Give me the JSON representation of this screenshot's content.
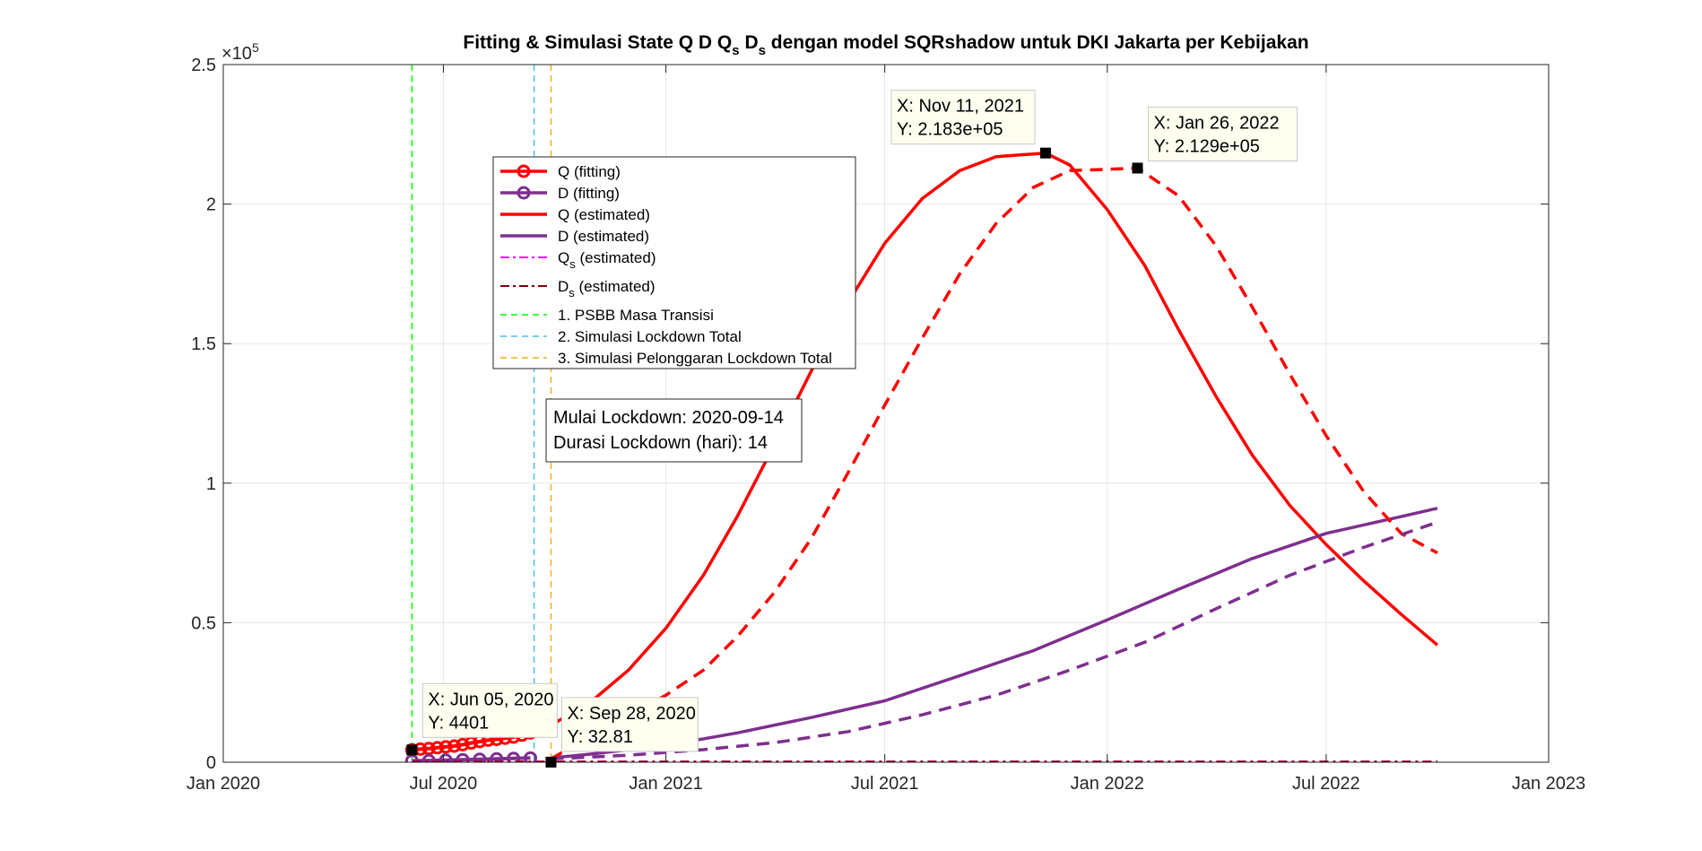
{
  "chart_data": {
    "type": "line",
    "title_parts": [
      "Fitting & Simulasi State  Q D Q",
      "s",
      " D",
      "s",
      " dengan model SQRshadow untuk DKI Jakarta per Kebijakan"
    ],
    "xlabel": "",
    "ylabel": "",
    "x_ticks": [
      "Jan 2020",
      "Jul 2020",
      "Jan 2021",
      "Jul 2021",
      "Jan 2022",
      "Jul 2022",
      "Jan 2023"
    ],
    "y_ticks": [
      "0",
      "0.5",
      "1",
      "1.5",
      "2",
      "2.5"
    ],
    "y_exponent": "×10",
    "y_exponent_power": "5",
    "xlim": [
      "2020-01-01",
      "2023-01-01"
    ],
    "ylim": [
      0,
      250000
    ],
    "grid": true,
    "legend_position": "upper-left",
    "series": [
      {
        "name": "Q (fitting)",
        "color": "#ff0000",
        "style": "solid-markers",
        "points": [
          [
            "2020-06-05",
            4401
          ],
          [
            "2020-06-12",
            4700
          ],
          [
            "2020-06-19",
            4900
          ],
          [
            "2020-06-26",
            5200
          ],
          [
            "2020-07-03",
            5500
          ],
          [
            "2020-07-10",
            5800
          ],
          [
            "2020-07-17",
            6300
          ],
          [
            "2020-07-24",
            6900
          ],
          [
            "2020-07-31",
            7400
          ],
          [
            "2020-08-07",
            7900
          ],
          [
            "2020-08-14",
            8200
          ],
          [
            "2020-08-21",
            8600
          ],
          [
            "2020-08-28",
            9000
          ],
          [
            "2020-09-04",
            9700
          ],
          [
            "2020-09-11",
            10500
          ]
        ]
      },
      {
        "name": "D (fitting)",
        "color": "#7e2f8e",
        "style": "solid-markers",
        "points": [
          [
            "2020-06-05",
            500
          ],
          [
            "2020-06-19",
            600
          ],
          [
            "2020-07-03",
            750
          ],
          [
            "2020-07-17",
            900
          ],
          [
            "2020-07-31",
            1050
          ],
          [
            "2020-08-14",
            1200
          ],
          [
            "2020-08-28",
            1350
          ],
          [
            "2020-09-11",
            1500
          ]
        ]
      },
      {
        "name": "Q (estimated)",
        "color": "#ff0000",
        "style": "solid",
        "points": [
          [
            "2020-09-14",
            10000
          ],
          [
            "2020-10-01",
            14000
          ],
          [
            "2020-11-01",
            22000
          ],
          [
            "2020-12-01",
            33000
          ],
          [
            "2021-01-01",
            48000
          ],
          [
            "2021-02-01",
            67000
          ],
          [
            "2021-03-01",
            88000
          ],
          [
            "2021-04-01",
            114000
          ],
          [
            "2021-05-01",
            140000
          ],
          [
            "2021-06-01",
            165000
          ],
          [
            "2021-07-01",
            186000
          ],
          [
            "2021-08-01",
            202000
          ],
          [
            "2021-09-01",
            212000
          ],
          [
            "2021-10-01",
            217000
          ],
          [
            "2021-11-11",
            218300
          ],
          [
            "2021-12-01",
            214000
          ],
          [
            "2022-01-01",
            198000
          ],
          [
            "2022-02-01",
            178000
          ],
          [
            "2022-03-01",
            155000
          ],
          [
            "2022-04-01",
            131000
          ],
          [
            "2022-05-01",
            110000
          ],
          [
            "2022-06-01",
            92000
          ],
          [
            "2022-07-01",
            78000
          ],
          [
            "2022-08-01",
            65000
          ],
          [
            "2022-09-01",
            53000
          ],
          [
            "2022-10-01",
            42000
          ]
        ]
      },
      {
        "name": "D (estimated)",
        "color": "#7e2f8e",
        "style": "solid",
        "points": [
          [
            "2020-09-28",
            1500
          ],
          [
            "2020-11-01",
            3000
          ],
          [
            "2021-01-01",
            6000
          ],
          [
            "2021-03-01",
            10500
          ],
          [
            "2021-05-01",
            16000
          ],
          [
            "2021-07-01",
            22000
          ],
          [
            "2021-09-01",
            31000
          ],
          [
            "2021-11-01",
            40000
          ],
          [
            "2022-01-01",
            51000
          ],
          [
            "2022-03-01",
            62000
          ],
          [
            "2022-05-01",
            73000
          ],
          [
            "2022-07-01",
            82000
          ],
          [
            "2022-09-01",
            88000
          ],
          [
            "2022-10-01",
            91000
          ]
        ]
      },
      {
        "name": "Q (dashed)",
        "color": "#ff0000",
        "style": "dashed",
        "points": [
          [
            "2020-09-28",
            1200
          ],
          [
            "2020-10-15",
            5500
          ],
          [
            "2020-11-15",
            13000
          ],
          [
            "2021-01-01",
            24000
          ],
          [
            "2021-02-01",
            33000
          ],
          [
            "2021-03-01",
            45000
          ],
          [
            "2021-04-01",
            61000
          ],
          [
            "2021-05-01",
            80000
          ],
          [
            "2021-06-01",
            104000
          ],
          [
            "2021-07-01",
            128000
          ],
          [
            "2021-08-01",
            152000
          ],
          [
            "2021-09-01",
            175000
          ],
          [
            "2021-10-01",
            193000
          ],
          [
            "2021-11-01",
            206000
          ],
          [
            "2021-12-01",
            212000
          ],
          [
            "2022-01-26",
            212900
          ],
          [
            "2022-03-01",
            203000
          ],
          [
            "2022-04-01",
            185000
          ],
          [
            "2022-05-01",
            163000
          ],
          [
            "2022-06-01",
            139000
          ],
          [
            "2022-07-01",
            117000
          ],
          [
            "2022-08-01",
            97000
          ],
          [
            "2022-09-01",
            82000
          ],
          [
            "2022-10-01",
            75000
          ]
        ]
      },
      {
        "name": "D (dashed)",
        "color": "#7e2f8e",
        "style": "dashed",
        "points": [
          [
            "2020-09-28",
            1200
          ],
          [
            "2020-12-01",
            2500
          ],
          [
            "2021-02-01",
            4500
          ],
          [
            "2021-04-01",
            7000
          ],
          [
            "2021-06-01",
            11000
          ],
          [
            "2021-08-01",
            17000
          ],
          [
            "2021-10-01",
            24000
          ],
          [
            "2021-12-01",
            33000
          ],
          [
            "2022-02-01",
            43000
          ],
          [
            "2022-04-01",
            55000
          ],
          [
            "2022-06-01",
            67000
          ],
          [
            "2022-08-01",
            77000
          ],
          [
            "2022-10-01",
            86000
          ]
        ]
      },
      {
        "name": "Qs (estimated)",
        "color": "#ff00ff",
        "style": "dashdot",
        "points": [
          [
            "2020-06-05",
            300
          ],
          [
            "2022-10-01",
            300
          ]
        ]
      },
      {
        "name": "Ds (estimated)",
        "color": "#7f0000",
        "style": "dashdot",
        "points": [
          [
            "2020-06-05",
            200
          ],
          [
            "2022-10-01",
            200
          ]
        ]
      }
    ],
    "vlines": [
      {
        "name": "1. PSBB Masa Transisi",
        "x": "2020-06-05",
        "color": "#00ff00"
      },
      {
        "name": "2. Simulasi Lockdown Total",
        "x": "2020-09-14",
        "color": "#4dbeee"
      },
      {
        "name": "3. Simulasi Pelonggaran Lockdown Total",
        "x": "2020-09-28",
        "color": "#edb120"
      }
    ],
    "legend": [
      {
        "label": "Q (fitting)",
        "color": "#ff0000",
        "kind": "line-marker"
      },
      {
        "label": "D (fitting)",
        "color": "#7e2f8e",
        "kind": "line-marker"
      },
      {
        "label": "Q (estimated)",
        "color": "#ff0000",
        "kind": "solid"
      },
      {
        "label": "D (estimated)",
        "color": "#7e2f8e",
        "kind": "solid"
      },
      {
        "label_main": "Q",
        "label_sub": "s",
        "label_rest": " (estimated)",
        "color": "#ff00ff",
        "kind": "dashdot"
      },
      {
        "label_main": "D",
        "label_sub": "s",
        "label_rest": " (estimated)",
        "color": "#7f0000",
        "kind": "dashdot"
      },
      {
        "label": "1. PSBB Masa Transisi",
        "color": "#00ff00",
        "kind": "dashed"
      },
      {
        "label": "2. Simulasi Lockdown Total",
        "color": "#4dbeee",
        "kind": "dashed"
      },
      {
        "label": "3. Simulasi Pelonggaran Lockdown Total",
        "color": "#edb120",
        "kind": "dashed"
      }
    ],
    "datatips": [
      {
        "x": "2020-06-05",
        "y": 4401,
        "line1": "X: Jun 05, 2020",
        "line2": "Y: 4401"
      },
      {
        "x": "2020-09-28",
        "y": 32.81,
        "line1": "X: Sep 28, 2020",
        "line2": "Y: 32.81"
      },
      {
        "x": "2021-11-11",
        "y": 218300,
        "line1": "X: Nov 11, 2021",
        "line2": "Y: 2.183e+05"
      },
      {
        "x": "2022-01-26",
        "y": 212900,
        "line1": "X: Jan 26, 2022",
        "line2": "Y: 2.129e+05"
      }
    ],
    "annotation": {
      "line1": "Mulai Lockdown: 2020-09-14",
      "line2": "Durasi Lockdown (hari): 14"
    }
  }
}
